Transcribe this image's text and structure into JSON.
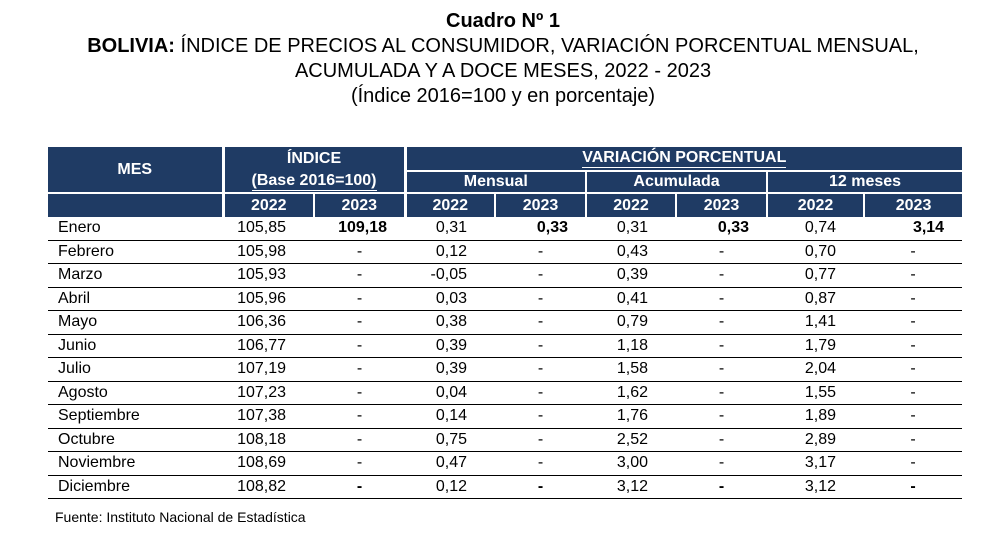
{
  "title": {
    "line1": "Cuadro Nº 1",
    "line2_bold": "BOLIVIA:",
    "line2_rest": " ÍNDICE DE PRECIOS AL CONSUMIDOR, VARIACIÓN PORCENTUAL MENSUAL,",
    "line3": "ACUMULADA Y A DOCE MESES, 2022 - 2023",
    "line4": "(Índice 2016=100 y en porcentaje)"
  },
  "header": {
    "mes": "MES",
    "indice": "ÍNDICE",
    "base": "(Base 2016=100)",
    "variacion": "VARIACIÓN PORCENTUAL",
    "mensual": "Mensual",
    "acumulada": "Acumulada",
    "doce": "12 meses",
    "y2022": "2022",
    "y2023": "2023"
  },
  "rows": [
    {
      "mes": "Enero",
      "i22": "105,85",
      "i23": "109,18",
      "m22": "0,31",
      "m23": "0,33",
      "a22": "0,31",
      "a23": "0,33",
      "d22": "0,74",
      "d23": "3,14"
    },
    {
      "mes": "Febrero",
      "i22": "105,98",
      "i23": "-",
      "m22": "0,12",
      "m23": "-",
      "a22": "0,43",
      "a23": "-",
      "d22": "0,70",
      "d23": "-"
    },
    {
      "mes": "Marzo",
      "i22": "105,93",
      "i23": "-",
      "m22": "-0,05",
      "m23": "-",
      "a22": "0,39",
      "a23": "-",
      "d22": "0,77",
      "d23": "-"
    },
    {
      "mes": "Abril",
      "i22": "105,96",
      "i23": "-",
      "m22": "0,03",
      "m23": "-",
      "a22": "0,41",
      "a23": "-",
      "d22": "0,87",
      "d23": "-"
    },
    {
      "mes": "Mayo",
      "i22": "106,36",
      "i23": "-",
      "m22": "0,38",
      "m23": "-",
      "a22": "0,79",
      "a23": "-",
      "d22": "1,41",
      "d23": "-"
    },
    {
      "mes": "Junio",
      "i22": "106,77",
      "i23": "-",
      "m22": "0,39",
      "m23": "-",
      "a22": "1,18",
      "a23": "-",
      "d22": "1,79",
      "d23": "-"
    },
    {
      "mes": "Julio",
      "i22": "107,19",
      "i23": "-",
      "m22": "0,39",
      "m23": "-",
      "a22": "1,58",
      "a23": "-",
      "d22": "2,04",
      "d23": "-"
    },
    {
      "mes": "Agosto",
      "i22": "107,23",
      "i23": "-",
      "m22": "0,04",
      "m23": "-",
      "a22": "1,62",
      "a23": "-",
      "d22": "1,55",
      "d23": "-"
    },
    {
      "mes": "Septiembre",
      "i22": "107,38",
      "i23": "-",
      "m22": "0,14",
      "m23": "-",
      "a22": "1,76",
      "a23": "-",
      "d22": "1,89",
      "d23": "-"
    },
    {
      "mes": "Octubre",
      "i22": "108,18",
      "i23": "-",
      "m22": "0,75",
      "m23": "-",
      "a22": "2,52",
      "a23": "-",
      "d22": "2,89",
      "d23": "-"
    },
    {
      "mes": "Noviembre",
      "i22": "108,69",
      "i23": "-",
      "m22": "0,47",
      "m23": "-",
      "a22": "3,00",
      "a23": "-",
      "d22": "3,17",
      "d23": "-"
    },
    {
      "mes": "Diciembre",
      "i22": "108,82",
      "i23": "-",
      "m22": "0,12",
      "m23": "-",
      "a22": "3,12",
      "a23": "-",
      "d22": "3,12",
      "d23": "-"
    }
  ],
  "source": "Fuente: Instituto Nacional de Estadística",
  "colors": {
    "header_bg": "#1f3b64",
    "header_text": "#ffffff"
  }
}
